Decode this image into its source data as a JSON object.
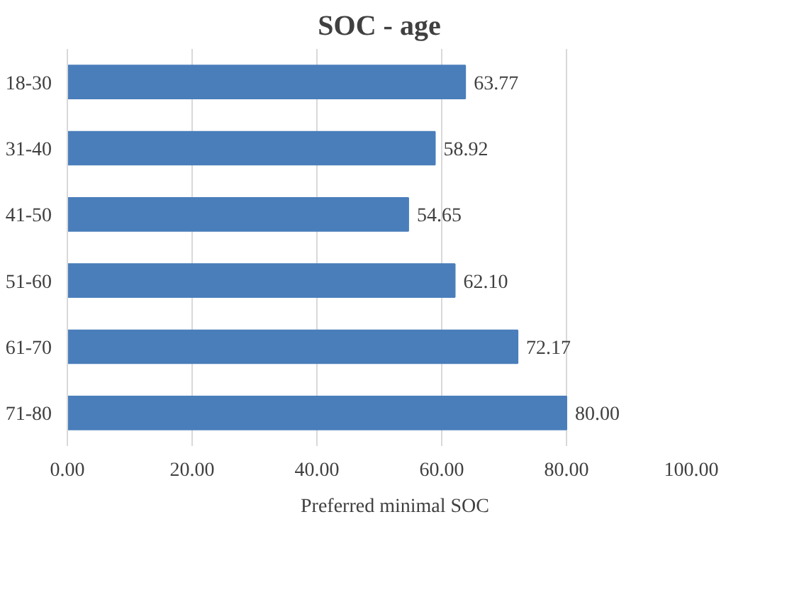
{
  "chart_data": {
    "type": "bar",
    "orientation": "horizontal",
    "title": "SOC - age",
    "categories": [
      "18-30",
      "31-40",
      "41-50",
      "51-60",
      "61-70",
      "71-80"
    ],
    "series": [
      {
        "name": "Preferred minimal SOC",
        "color": "#4a7ebb",
        "values": [
          63.77,
          58.92,
          54.65,
          62.1,
          72.17,
          80.0
        ],
        "value_labels": [
          "63.77",
          "58.92",
          "54.65",
          "62.10",
          "72.17",
          "80.00"
        ]
      }
    ],
    "xlim": [
      0,
      100
    ],
    "xticks": [
      {
        "value": 0,
        "label": "0.00"
      },
      {
        "value": 20,
        "label": "20.00"
      },
      {
        "value": 40,
        "label": "40.00"
      },
      {
        "value": 60,
        "label": "60.00"
      },
      {
        "value": 80,
        "label": "80.00"
      },
      {
        "value": 100,
        "label": "100.00"
      }
    ],
    "grid": "x",
    "legend": "bottom"
  }
}
